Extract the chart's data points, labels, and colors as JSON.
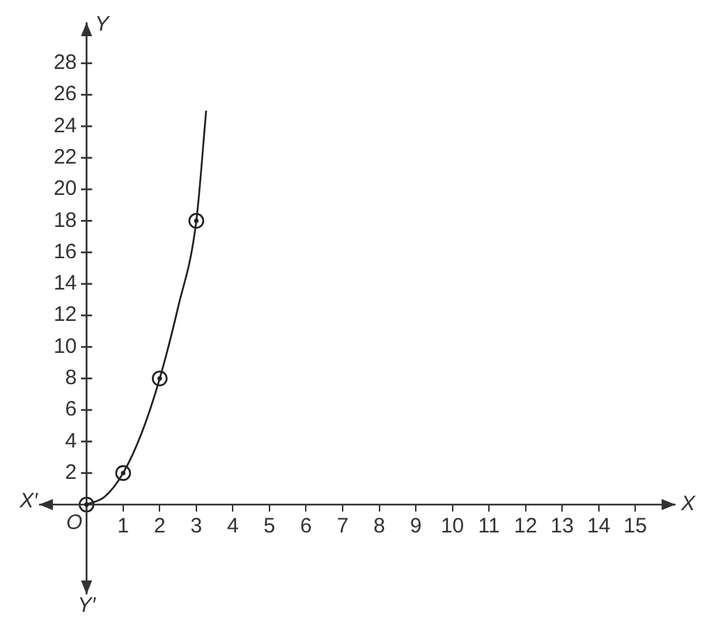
{
  "chart_data": {
    "type": "line",
    "xlabel": "X",
    "ylabel": "Y",
    "annotations": [
      {
        "text": "O",
        "x": 0,
        "y": 0
      },
      "X′",
      "Y′"
    ],
    "xlim": [
      -1.3,
      16.1
    ],
    "ylim": [
      -5.7,
      30.6
    ],
    "xticks": [
      1,
      2,
      3,
      4,
      5,
      6,
      7,
      8,
      9,
      10,
      11,
      12,
      13,
      14,
      15
    ],
    "yticks": [
      2,
      4,
      6,
      8,
      10,
      12,
      14,
      16,
      18,
      20,
      22,
      24,
      26,
      28
    ],
    "grid": false,
    "legend": false,
    "series": [
      {
        "color": "#231f20",
        "x": [
          0,
          0.5,
          1,
          1.5,
          2,
          2.5,
          3,
          3.27
        ],
        "values": [
          0,
          0.5,
          2,
          4.5,
          8,
          12.5,
          18,
          25
        ]
      },
      {
        "type": "scatter",
        "marker": "circle",
        "color": "#231f20",
        "x": [
          0,
          1,
          2,
          3
        ],
        "values": [
          0,
          2,
          8,
          18
        ]
      }
    ]
  }
}
